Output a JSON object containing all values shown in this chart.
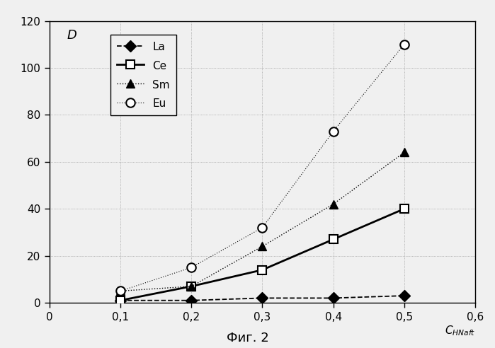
{
  "x": [
    0.1,
    0.2,
    0.3,
    0.4,
    0.5
  ],
  "La": [
    1,
    1,
    2,
    2,
    3
  ],
  "Ce": [
    1,
    7,
    14,
    27,
    40
  ],
  "Sm": [
    5,
    7,
    24,
    42,
    64
  ],
  "Eu": [
    5,
    15,
    32,
    73,
    110
  ],
  "xlim": [
    0,
    0.6
  ],
  "ylim": [
    0,
    120
  ],
  "xticks": [
    0,
    0.1,
    0.2,
    0.3,
    0.4,
    0.5,
    0.6
  ],
  "yticks": [
    0,
    20,
    40,
    60,
    80,
    100,
    120
  ],
  "xlabel": "C_{HNaft}",
  "ylabel": "D",
  "figcaption": "Фиг. 2",
  "background_color": "#f0f0f0",
  "plot_bg_color": "#f0f0f0",
  "grid_color": "#888888"
}
